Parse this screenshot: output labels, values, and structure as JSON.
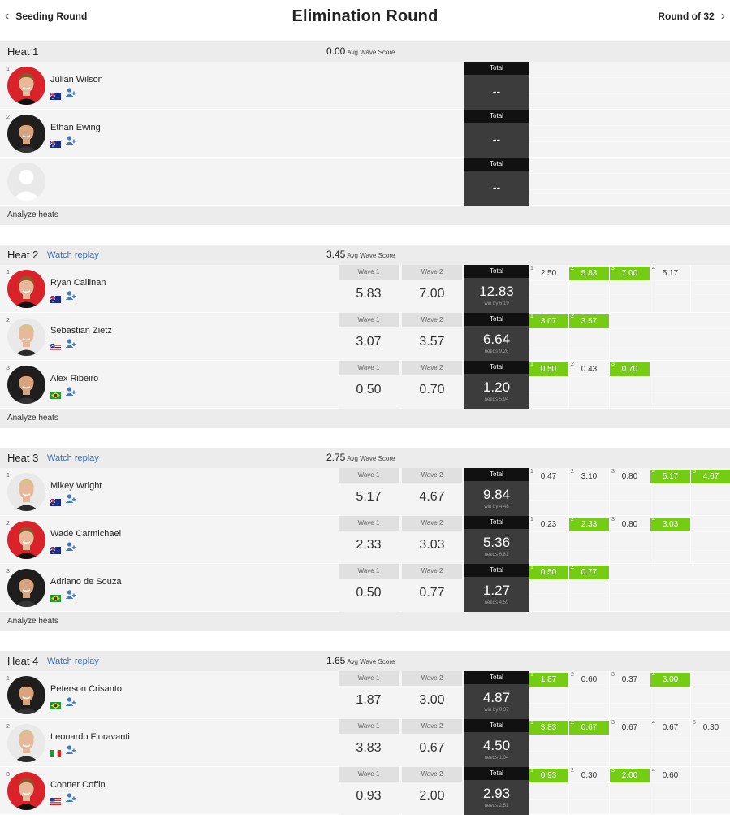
{
  "header": {
    "back_label": "Seeding Round",
    "title": "Elimination Round",
    "forward_label": "Round of 32"
  },
  "colors": {
    "highlight": "#74cc15",
    "total_bg": "#3c3c3c",
    "link": "#3a6fb3"
  },
  "avg_label": "Avg Wave Score",
  "analyze_label": "Analyze heats",
  "watch_label": "Watch replay",
  "wave1_label": "Wave 1",
  "wave2_label": "Wave 2",
  "total_label": "Total",
  "heats": [
    {
      "name": "Heat 1",
      "avg": "0.00",
      "replay": false,
      "surfers": [
        {
          "seed": "1",
          "name": "Julian Wilson",
          "country": "au",
          "avatar": "red",
          "total": "--"
        },
        {
          "seed": "2",
          "name": "Ethan Ewing",
          "country": "au",
          "avatar": "dark",
          "total": "--"
        },
        {
          "seed": "",
          "name": "",
          "country": "",
          "avatar": "empty",
          "total": "--"
        }
      ]
    },
    {
      "name": "Heat 2",
      "avg": "3.45",
      "replay": true,
      "surfers": [
        {
          "seed": "1",
          "name": "Ryan Callinan",
          "country": "au",
          "avatar": "red",
          "w1": "5.83",
          "w2": "7.00",
          "total": "12.83",
          "note": "win by 6.19",
          "waves": [
            {
              "n": "1",
              "s": "2.50",
              "hi": false
            },
            {
              "n": "2",
              "s": "5.83",
              "hi": true
            },
            {
              "n": "3",
              "s": "7.00",
              "hi": true
            },
            {
              "n": "4",
              "s": "5.17",
              "hi": false
            }
          ]
        },
        {
          "seed": "2",
          "name": "Sebastian Zietz",
          "country": "hi",
          "avatar": "light",
          "w1": "3.07",
          "w2": "3.57",
          "total": "6.64",
          "note": "needs 9.26",
          "waves": [
            {
              "n": "1",
              "s": "3.07",
              "hi": true
            },
            {
              "n": "2",
              "s": "3.57",
              "hi": true
            }
          ]
        },
        {
          "seed": "3",
          "name": "Alex Ribeiro",
          "country": "br",
          "avatar": "dark",
          "w1": "0.50",
          "w2": "0.70",
          "total": "1.20",
          "note": "needs 5.94",
          "waves": [
            {
              "n": "1",
              "s": "0.50",
              "hi": true
            },
            {
              "n": "2",
              "s": "0.43",
              "hi": false
            },
            {
              "n": "3",
              "s": "0.70",
              "hi": true
            }
          ]
        }
      ]
    },
    {
      "name": "Heat 3",
      "avg": "2.75",
      "replay": true,
      "surfers": [
        {
          "seed": "1",
          "name": "Mikey Wright",
          "country": "au",
          "avatar": "light",
          "w1": "5.17",
          "w2": "4.67",
          "total": "9.84",
          "note": "win by 4.48",
          "waves": [
            {
              "n": "1",
              "s": "0.47",
              "hi": false
            },
            {
              "n": "2",
              "s": "3.10",
              "hi": false
            },
            {
              "n": "3",
              "s": "0.80",
              "hi": false
            },
            {
              "n": "4",
              "s": "5.17",
              "hi": true
            },
            {
              "n": "5",
              "s": "4.67",
              "hi": true
            }
          ]
        },
        {
          "seed": "2",
          "name": "Wade Carmichael",
          "country": "au",
          "avatar": "red",
          "w1": "2.33",
          "w2": "3.03",
          "total": "5.36",
          "note": "needs 6.81",
          "waves": [
            {
              "n": "1",
              "s": "0.23",
              "hi": false
            },
            {
              "n": "2",
              "s": "2.33",
              "hi": true
            },
            {
              "n": "3",
              "s": "0.80",
              "hi": false
            },
            {
              "n": "4",
              "s": "3.03",
              "hi": true
            }
          ]
        },
        {
          "seed": "3",
          "name": "Adriano de Souza",
          "country": "br",
          "avatar": "dark",
          "w1": "0.50",
          "w2": "0.77",
          "total": "1.27",
          "note": "needs 4.59",
          "waves": [
            {
              "n": "1",
              "s": "0.50",
              "hi": true
            },
            {
              "n": "2",
              "s": "0.77",
              "hi": true
            }
          ]
        }
      ]
    },
    {
      "name": "Heat 4",
      "avg": "1.65",
      "replay": true,
      "surfers": [
        {
          "seed": "1",
          "name": "Peterson Crisanto",
          "country": "br",
          "avatar": "dark",
          "w1": "1.87",
          "w2": "3.00",
          "total": "4.87",
          "note": "win by 0.37",
          "waves": [
            {
              "n": "1",
              "s": "1.87",
              "hi": true
            },
            {
              "n": "2",
              "s": "0.60",
              "hi": false
            },
            {
              "n": "3",
              "s": "0.37",
              "hi": false
            },
            {
              "n": "4",
              "s": "3.00",
              "hi": true
            }
          ]
        },
        {
          "seed": "2",
          "name": "Leonardo Fioravanti",
          "country": "it",
          "avatar": "light",
          "w1": "3.83",
          "w2": "0.67",
          "total": "4.50",
          "note": "needs 1.04",
          "waves": [
            {
              "n": "1",
              "s": "3.83",
              "hi": true
            },
            {
              "n": "2",
              "s": "0.67",
              "hi": true
            },
            {
              "n": "3",
              "s": "0.67",
              "hi": false
            },
            {
              "n": "4",
              "s": "0.67",
              "hi": false
            },
            {
              "n": "5",
              "s": "0.30",
              "hi": false
            }
          ]
        },
        {
          "seed": "3",
          "name": "Conner Coffin",
          "country": "us",
          "avatar": "red",
          "w1": "0.93",
          "w2": "2.00",
          "total": "2.93",
          "note": "needs 2.51",
          "waves": [
            {
              "n": "1",
              "s": "0.93",
              "hi": true
            },
            {
              "n": "2",
              "s": "0.30",
              "hi": false
            },
            {
              "n": "3",
              "s": "2.00",
              "hi": true
            },
            {
              "n": "4",
              "s": "0.60",
              "hi": false
            }
          ]
        }
      ]
    }
  ]
}
